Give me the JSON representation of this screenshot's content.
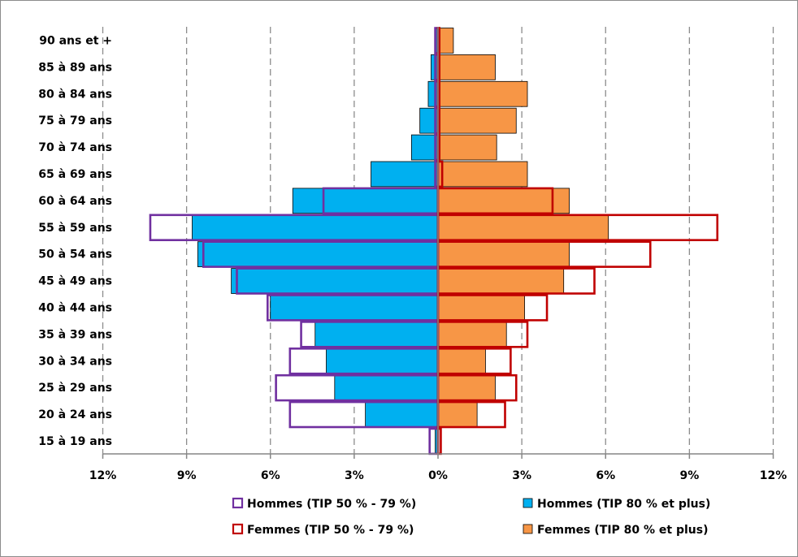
{
  "chart_data": {
    "type": "bar",
    "orientation": "horizontal",
    "style": "population-pyramid",
    "title": "",
    "xlabel": "",
    "ylabel": "",
    "xlim": [
      -12,
      12
    ],
    "x_ticks": [
      -12,
      -9,
      -6,
      -3,
      0,
      3,
      6,
      9,
      12
    ],
    "x_tick_labels": [
      "12%",
      "9%",
      "6%",
      "3%",
      "0%",
      "3%",
      "6%",
      "9%",
      "12%"
    ],
    "grid": "vertical-dashed",
    "legend_position": "bottom",
    "categories": [
      "90 ans et +",
      "85 à 89 ans",
      "80 à 84 ans",
      "75 à 79 ans",
      "70 à 74 ans",
      "65 à 69 ans",
      "60 à 64 ans",
      "55 à 59 ans",
      "50 à 54 ans",
      "45 à 49 ans",
      "40 à 44 ans",
      "35 à 39 ans",
      "30 à 34 ans",
      "25 à 29 ans",
      "20 à 24 ans",
      "15 à 19 ans"
    ],
    "series": [
      {
        "name": "Hommes (TIP 50 % - 79 %)",
        "side": "left",
        "style": "outline",
        "color": "#7030a0",
        "values": [
          0.1,
          0.1,
          0.1,
          0.1,
          0.1,
          0.1,
          4.1,
          10.3,
          8.4,
          7.2,
          6.1,
          4.9,
          5.3,
          5.8,
          5.3,
          0.3
        ]
      },
      {
        "name": "Hommes (TIP 80 % et plus)",
        "side": "left",
        "style": "filled",
        "color": "#00b0f0",
        "values": [
          0.1,
          0.25,
          0.35,
          0.65,
          0.95,
          2.4,
          5.2,
          8.8,
          8.6,
          7.4,
          6.0,
          4.4,
          4.0,
          3.7,
          2.6,
          0.1
        ]
      },
      {
        "name": "Femmes (TIP 50 % - 79 %)",
        "side": "right",
        "style": "outline",
        "color": "#c00000",
        "values": [
          0.05,
          0.05,
          0.05,
          0.05,
          0.05,
          0.15,
          4.1,
          10.0,
          7.6,
          5.6,
          3.9,
          3.2,
          2.6,
          2.8,
          2.4,
          0.1
        ]
      },
      {
        "name": "Femmes (TIP 80 % et plus)",
        "side": "right",
        "style": "filled",
        "color": "#f79646",
        "values": [
          0.55,
          2.05,
          3.2,
          2.8,
          2.1,
          3.2,
          4.7,
          6.1,
          4.7,
          4.5,
          3.1,
          2.45,
          1.7,
          2.05,
          1.4,
          0.0
        ]
      }
    ]
  },
  "colors": {
    "axis": "#868686",
    "grid": "#8c8c8c",
    "bar_border": "#000000"
  }
}
